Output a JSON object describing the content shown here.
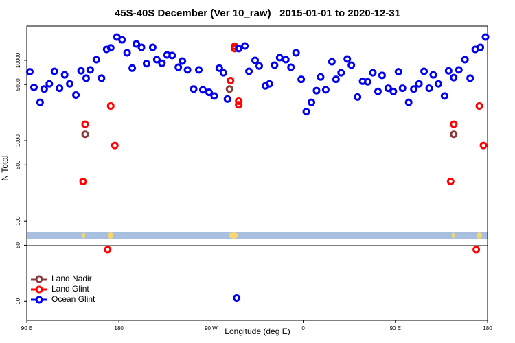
{
  "chart_data": {
    "type": "scatter",
    "title": "45S-40S December (Ver 10_raw)   2015-01-01 to 2020-12-31",
    "x_label": "Longitude (deg E)",
    "y_label": "N Total",
    "xlim": [
      90,
      540
    ],
    "ylim": [
      5.8,
      26700
    ],
    "log_y": true,
    "xticks": [
      {
        "value": 90,
        "label": "90 E"
      },
      {
        "value": 180,
        "label": "180"
      },
      {
        "value": 270,
        "label": "90 W"
      },
      {
        "value": 360,
        "label": "0"
      },
      {
        "value": 450,
        "label": "90 E"
      },
      {
        "value": 540,
        "label": "180"
      }
    ],
    "yticks": [
      10,
      50,
      100,
      500,
      1000,
      5000,
      10000
    ],
    "legend": "bottom-left",
    "series": [
      {
        "name": "Land Nadir",
        "color": "#8b3a3a",
        "x": [
          147,
          288,
          507
        ],
        "values": [
          1200,
          4400,
          1200
        ]
      },
      {
        "name": "Land Glint",
        "color": "#ff0000",
        "x": [
          145,
          147,
          169,
          172,
          176,
          293,
          293,
          297,
          297,
          289,
          504,
          507,
          529,
          532,
          536
        ],
        "values": [
          310,
          1600,
          44,
          2700,
          870,
          15000,
          14000,
          3100,
          2800,
          5600,
          310,
          1600,
          44,
          2700,
          870
        ]
      },
      {
        "name": "Ocean Glint",
        "color": "#0000ee",
        "x": [
          93,
          97,
          103,
          107,
          112,
          117,
          122,
          127,
          132,
          138,
          143,
          148,
          152,
          158,
          163,
          168,
          172,
          178,
          183,
          188,
          193,
          197,
          202,
          207,
          213,
          217,
          222,
          227,
          232,
          238,
          242,
          247,
          253,
          258,
          262,
          268,
          273,
          278,
          282,
          286,
          297,
          303,
          307,
          313,
          317,
          323,
          327,
          332,
          337,
          343,
          348,
          353,
          358,
          363,
          368,
          373,
          377,
          382,
          388,
          392,
          397,
          403,
          407,
          413,
          418,
          423,
          428,
          433,
          437,
          443,
          448,
          453,
          457,
          463,
          468,
          473,
          478,
          483,
          487,
          492,
          498,
          502,
          507,
          512,
          518,
          523,
          528,
          533,
          538,
          295
        ],
        "values": [
          7200,
          4600,
          3000,
          4400,
          5100,
          7300,
          4500,
          6600,
          5100,
          3700,
          7400,
          6000,
          7600,
          10200,
          6000,
          13700,
          14300,
          19500,
          18000,
          12400,
          8000,
          16000,
          14500,
          9100,
          14500,
          10200,
          9200,
          11700,
          11500,
          8200,
          9800,
          7600,
          4400,
          7600,
          4300,
          4000,
          3600,
          8000,
          7000,
          3300,
          14000,
          15100,
          7300,
          10000,
          8500,
          4800,
          5100,
          8700,
          10800,
          10200,
          8200,
          12400,
          5800,
          2300,
          3000,
          4200,
          6200,
          4300,
          9600,
          5800,
          7000,
          10400,
          8700,
          3500,
          5500,
          5400,
          7000,
          4100,
          6500,
          4500,
          4100,
          7200,
          4500,
          3000,
          4400,
          5100,
          7300,
          4500,
          6600,
          5100,
          3600,
          7400,
          6100,
          7600,
          10200,
          6000,
          13700,
          14500,
          19500,
          11
        ]
      }
    ]
  }
}
